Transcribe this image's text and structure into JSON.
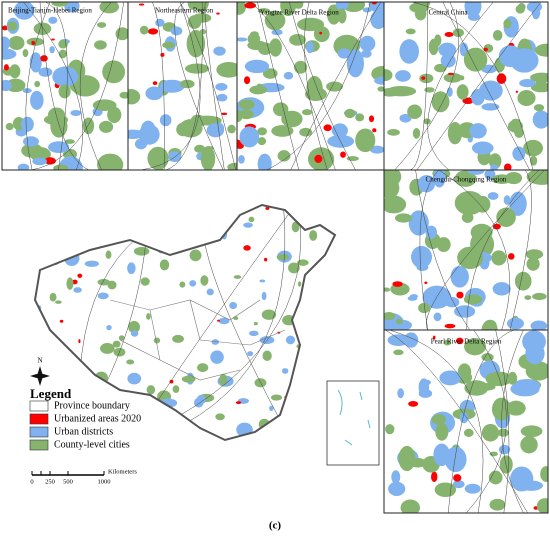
{
  "panels": [
    {
      "title": "Beijing-Tianjin-Hebei Region"
    },
    {
      "title": "Northeastern Region"
    },
    {
      "title": "Yangtze River Delta Region"
    },
    {
      "title": "Central China"
    },
    {
      "title": "Chengdu-Chongqing Region"
    },
    {
      "title": "Pearl River Delta Region"
    }
  ],
  "legend": {
    "title": "Legend",
    "items": [
      {
        "label": "Province boundary",
        "color": "#ffffff"
      },
      {
        "label": "Urbanized areas 2020",
        "color": "#ff0000"
      },
      {
        "label": "Urban districts",
        "color": "#7fb2ee"
      },
      {
        "label": "County-level cities",
        "color": "#86b46e"
      }
    ]
  },
  "north_arrow": "N",
  "scale_bar": {
    "labels": [
      "0",
      "250",
      "500",
      "1000"
    ],
    "unit": "Kilometers"
  },
  "caption": "(c)"
}
